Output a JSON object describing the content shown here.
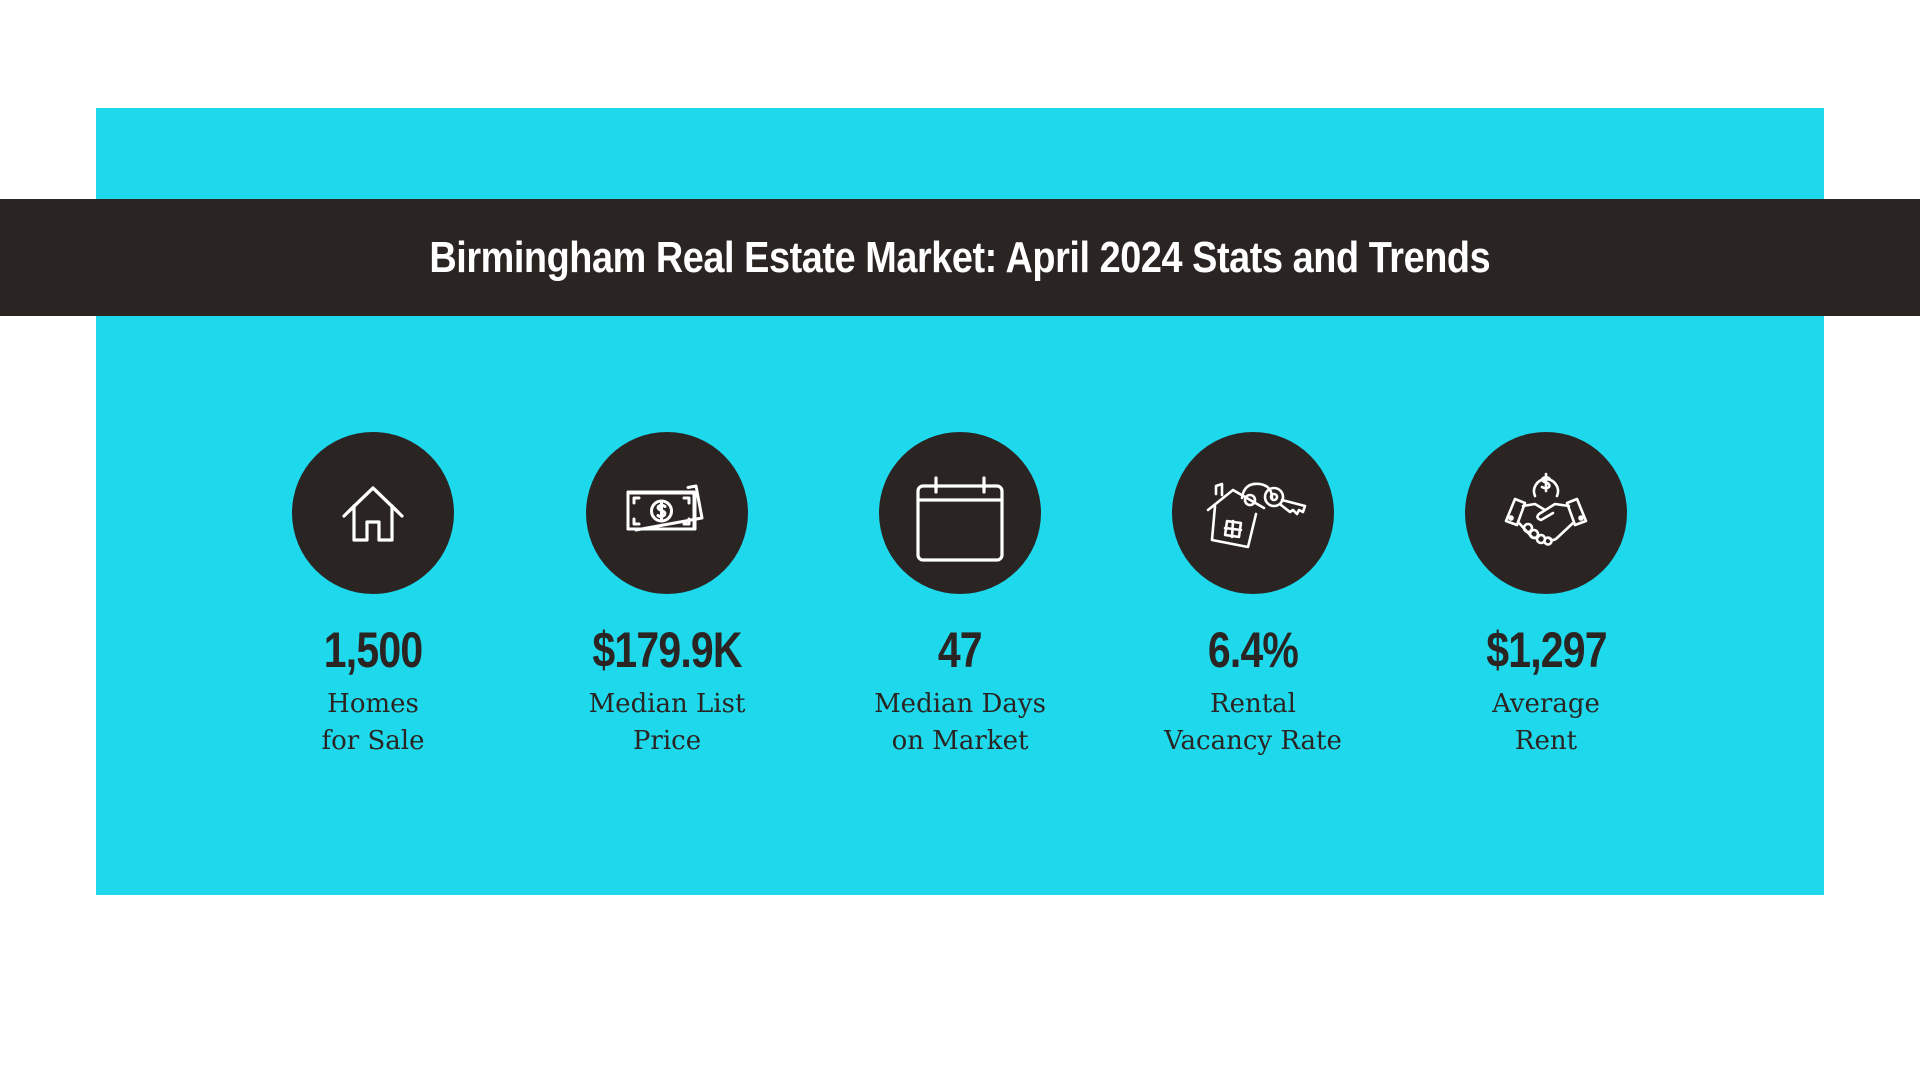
{
  "title": "Birmingham Real Estate Market: April 2024 Stats and Trends",
  "colors": {
    "panel": "#1ed9eb",
    "dark": "#2a2523",
    "background": "#ffffff"
  },
  "stats": [
    {
      "icon": "house-icon",
      "value": "1,500",
      "label_line1": "Homes",
      "label_line2": "for Sale"
    },
    {
      "icon": "cash-icon",
      "value": "$179.9K",
      "label_line1": "Median List",
      "label_line2": "Price"
    },
    {
      "icon": "calendar-icon",
      "value": "47",
      "label_line1": "Median Days",
      "label_line2": "on Market"
    },
    {
      "icon": "house-key-icon",
      "value": "6.4%",
      "label_line1": "Rental",
      "label_line2": "Vacancy Rate"
    },
    {
      "icon": "handshake-dollar-icon",
      "value": "$1,297",
      "label_line1": "Average",
      "label_line2": "Rent"
    }
  ]
}
